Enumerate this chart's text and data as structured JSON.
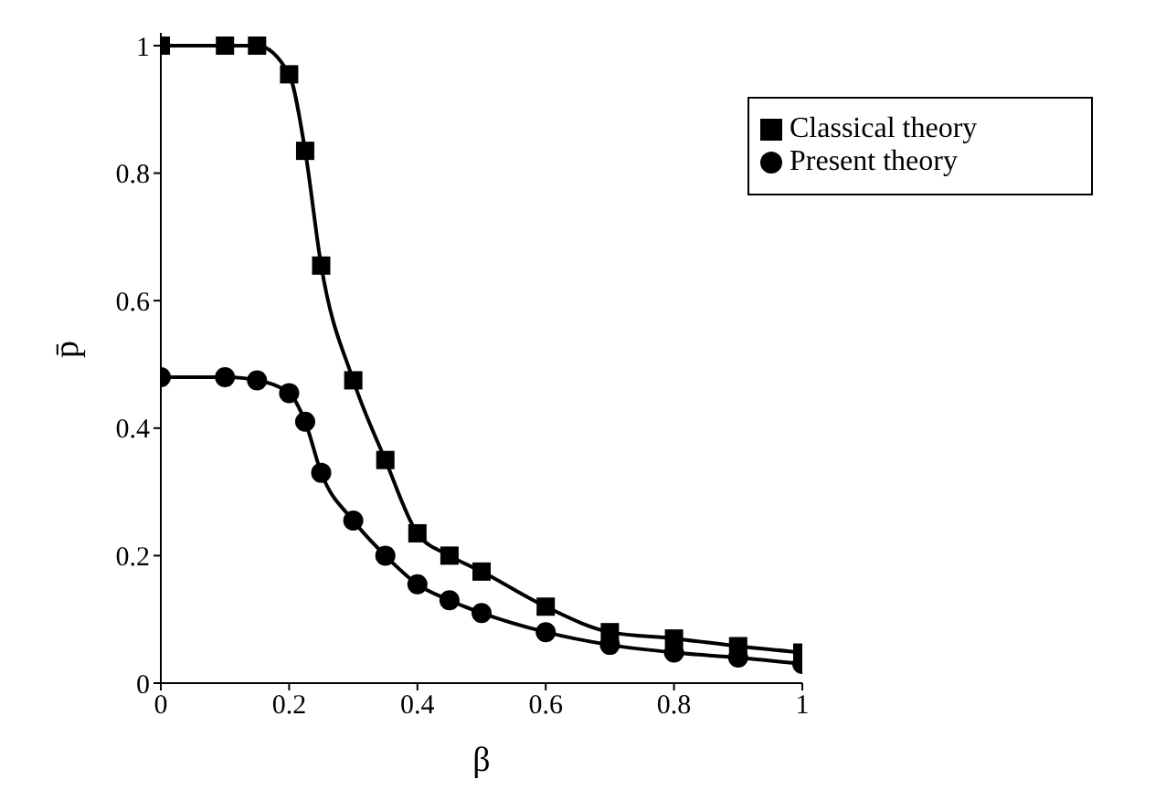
{
  "chart_data": {
    "type": "line",
    "xlabel": "β",
    "ylabel": "p̄",
    "xlim": [
      0,
      1
    ],
    "ylim": [
      0,
      1.02
    ],
    "xticks": [
      0,
      0.2,
      0.4,
      0.6,
      0.8,
      1
    ],
    "yticks": [
      0,
      0.2,
      0.4,
      0.6,
      0.8,
      1
    ],
    "grid": false,
    "legend": "top right",
    "line_style": "solid",
    "series": [
      {
        "name": "Classical theory",
        "color": "#000000",
        "marker": "square",
        "x": [
          0,
          0.1,
          0.15,
          0.2,
          0.225,
          0.25,
          0.3,
          0.35,
          0.4,
          0.45,
          0.5,
          0.6,
          0.7,
          0.8,
          0.9,
          1
        ],
        "values": [
          1,
          1,
          1,
          0.955,
          0.835,
          0.655,
          0.475,
          0.35,
          0.235,
          0.2,
          0.175,
          0.12,
          0.08,
          0.07,
          0.058,
          0.048
        ]
      },
      {
        "name": "Present theory",
        "color": "#000000",
        "marker": "circle",
        "x": [
          0,
          0.1,
          0.15,
          0.2,
          0.225,
          0.25,
          0.3,
          0.35,
          0.4,
          0.45,
          0.5,
          0.6,
          0.7,
          0.8,
          0.9,
          1
        ],
        "values": [
          0.48,
          0.48,
          0.475,
          0.455,
          0.41,
          0.33,
          0.255,
          0.2,
          0.155,
          0.13,
          0.11,
          0.08,
          0.06,
          0.048,
          0.04,
          0.03
        ]
      }
    ]
  }
}
